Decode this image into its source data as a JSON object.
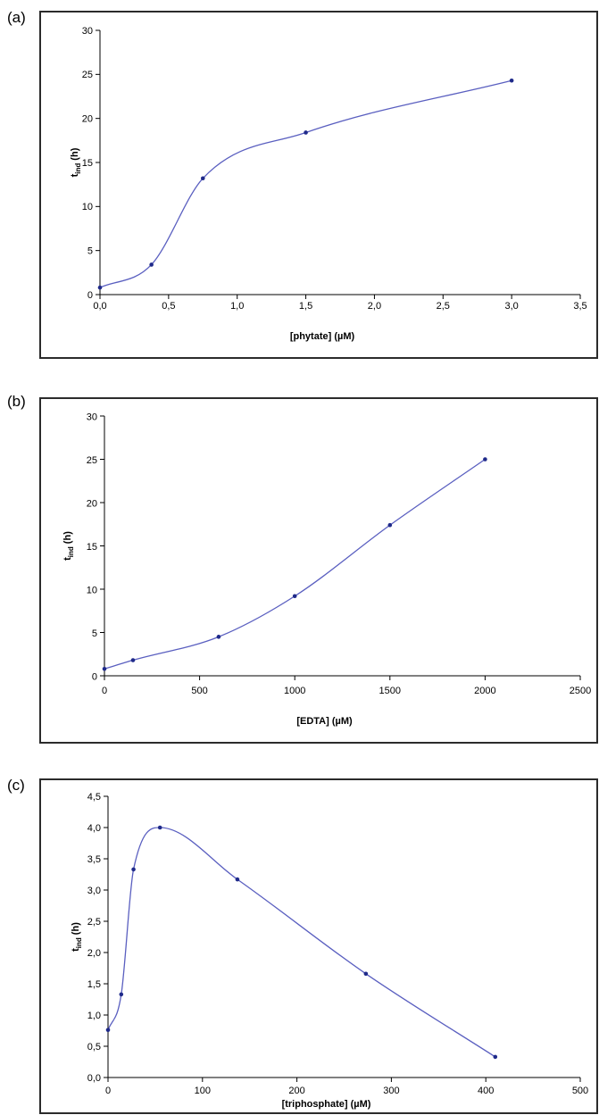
{
  "panels": [
    {
      "label": "(a)"
    },
    {
      "label": "(b)"
    },
    {
      "label": "(c)"
    }
  ],
  "chart_data": [
    {
      "type": "line",
      "xlabel": "[phytate] (µM)",
      "ylabel_main": "t",
      "ylabel_sub": "ind",
      "ylabel_unit": "(h)",
      "xlim": [
        0,
        3.5
      ],
      "ylim": [
        0,
        30
      ],
      "xticks": [
        "0,0",
        "0,5",
        "1,0",
        "1,5",
        "2,0",
        "2,5",
        "3,0",
        "3,5"
      ],
      "xtick_values": [
        0,
        0.5,
        1.0,
        1.5,
        2.0,
        2.5,
        3.0,
        3.5
      ],
      "yticks": [
        "0",
        "5",
        "10",
        "15",
        "20",
        "25",
        "30"
      ],
      "ytick_values": [
        0,
        5,
        10,
        15,
        20,
        25,
        30
      ],
      "grid": false,
      "line_color": "#5a5fc0",
      "marker_color": "#1f2a8a",
      "series": [
        {
          "x": [
            0.0,
            0.375,
            0.75,
            1.5,
            3.0
          ],
          "y": [
            0.8,
            3.4,
            13.2,
            18.4,
            24.3
          ]
        }
      ]
    },
    {
      "type": "line",
      "xlabel": "[EDTA] (µM)",
      "ylabel_main": "t",
      "ylabel_sub": "ind",
      "ylabel_unit": "(h)",
      "xlim": [
        0,
        2500
      ],
      "ylim": [
        0,
        30
      ],
      "xticks": [
        "0",
        "500",
        "1000",
        "1500",
        "2000",
        "2500"
      ],
      "xtick_values": [
        0,
        500,
        1000,
        1500,
        2000,
        2500
      ],
      "yticks": [
        "0",
        "5",
        "10",
        "15",
        "20",
        "25",
        "30"
      ],
      "ytick_values": [
        0,
        5,
        10,
        15,
        20,
        25,
        30
      ],
      "grid": false,
      "line_color": "#5a5fc0",
      "marker_color": "#1f2a8a",
      "series": [
        {
          "x": [
            0,
            150,
            600,
            1000,
            1500,
            2000
          ],
          "y": [
            0.8,
            1.8,
            4.5,
            9.2,
            17.4,
            25.0
          ]
        }
      ]
    },
    {
      "type": "line",
      "xlabel": "[triphosphate] (µM)",
      "ylabel_main": "t",
      "ylabel_sub": "ind",
      "ylabel_unit": "(h)",
      "xlim": [
        0,
        500
      ],
      "ylim": [
        0,
        4.5
      ],
      "xticks": [
        "0",
        "100",
        "200",
        "300",
        "400",
        "500"
      ],
      "xtick_values": [
        0,
        100,
        200,
        300,
        400,
        500
      ],
      "yticks": [
        "0,0",
        "0,5",
        "1,0",
        "1,5",
        "2,0",
        "2,5",
        "3,0",
        "3,5",
        "4,0",
        "4,5"
      ],
      "ytick_values": [
        0,
        0.5,
        1.0,
        1.5,
        2.0,
        2.5,
        3.0,
        3.5,
        4.0,
        4.5
      ],
      "grid": false,
      "line_color": "#5a5fc0",
      "marker_color": "#1f2a8a",
      "series": [
        {
          "x": [
            0,
            14,
            27,
            55,
            137,
            273,
            410
          ],
          "y": [
            0.76,
            1.33,
            3.33,
            4.0,
            3.17,
            1.66,
            0.33
          ]
        }
      ]
    }
  ]
}
